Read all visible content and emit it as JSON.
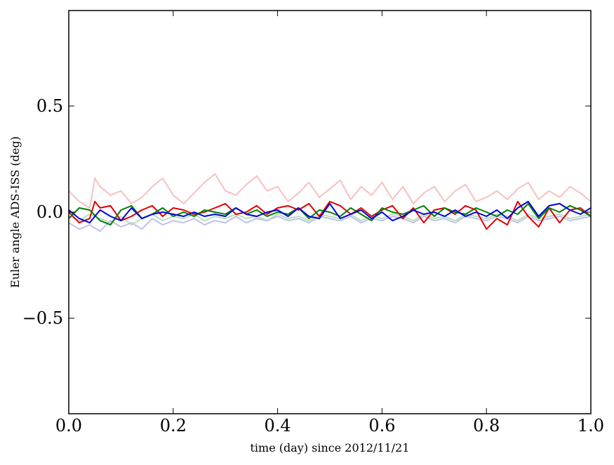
{
  "chart_data": {
    "type": "line",
    "xlabel": "time (day) since 2012/11/21",
    "ylabel": "Euler angle ADS-ISS (deg)",
    "xlim": [
      0.0,
      1.0
    ],
    "ylim": [
      -0.95,
      0.95
    ],
    "grid": false,
    "x_ticks": [
      {
        "value": 0.0,
        "label": "0.0"
      },
      {
        "value": 0.2,
        "label": "0.2"
      },
      {
        "value": 0.4,
        "label": "0.4"
      },
      {
        "value": 0.6,
        "label": "0.6"
      },
      {
        "value": 0.8,
        "label": "0.8"
      },
      {
        "value": 1.0,
        "label": "1.0"
      }
    ],
    "y_ticks": [
      {
        "value": -0.5,
        "label": "−0.5"
      },
      {
        "value": 0.0,
        "label": "0.0"
      },
      {
        "value": 0.5,
        "label": "0.5"
      }
    ],
    "series": [
      {
        "color": "#f8c0c0",
        "x": [
          0.0,
          0.02,
          0.04,
          0.05,
          0.06,
          0.08,
          0.1,
          0.12,
          0.14,
          0.16,
          0.18,
          0.2,
          0.22,
          0.24,
          0.26,
          0.28,
          0.3,
          0.32,
          0.34,
          0.36,
          0.38,
          0.4,
          0.42,
          0.44,
          0.46,
          0.48,
          0.5,
          0.52,
          0.54,
          0.56,
          0.58,
          0.6,
          0.62,
          0.64,
          0.66,
          0.68,
          0.7,
          0.72,
          0.74,
          0.76,
          0.78,
          0.8,
          0.82,
          0.84,
          0.86,
          0.88,
          0.9,
          0.92,
          0.94,
          0.96,
          0.98,
          1.0
        ],
        "y": [
          0.1,
          0.05,
          0.02,
          0.16,
          0.12,
          0.08,
          0.1,
          0.04,
          0.07,
          0.12,
          0.16,
          0.08,
          0.04,
          0.09,
          0.14,
          0.18,
          0.1,
          0.08,
          0.13,
          0.17,
          0.1,
          0.12,
          0.05,
          0.09,
          0.14,
          0.07,
          0.11,
          0.15,
          0.06,
          0.12,
          0.08,
          0.14,
          0.06,
          0.12,
          0.04,
          0.09,
          0.12,
          0.05,
          0.1,
          0.13,
          0.05,
          0.07,
          0.1,
          0.06,
          0.11,
          0.14,
          0.06,
          0.1,
          0.07,
          0.12,
          0.09,
          0.05
        ]
      },
      {
        "color": "#b8e0b8",
        "x": [
          0.0,
          0.02,
          0.04,
          0.06,
          0.08,
          0.1,
          0.12,
          0.14,
          0.16,
          0.18,
          0.2,
          0.22,
          0.24,
          0.26,
          0.28,
          0.3,
          0.32,
          0.34,
          0.36,
          0.38,
          0.4,
          0.42,
          0.44,
          0.46,
          0.48,
          0.5,
          0.52,
          0.54,
          0.56,
          0.58,
          0.6,
          0.62,
          0.64,
          0.66,
          0.68,
          0.7,
          0.72,
          0.74,
          0.76,
          0.78,
          0.8,
          0.82,
          0.84,
          0.86,
          0.88,
          0.9,
          0.92,
          0.94,
          0.96,
          0.98,
          1.0
        ],
        "y": [
          -0.02,
          -0.04,
          -0.01,
          -0.03,
          -0.05,
          -0.02,
          -0.06,
          -0.03,
          -0.01,
          -0.04,
          -0.02,
          -0.03,
          -0.01,
          -0.04,
          -0.02,
          -0.03,
          -0.01,
          -0.03,
          -0.02,
          -0.04,
          -0.01,
          -0.03,
          -0.02,
          -0.04,
          -0.01,
          -0.02,
          -0.03,
          -0.01,
          -0.04,
          -0.02,
          -0.03,
          -0.01,
          -0.02,
          -0.04,
          -0.01,
          -0.03,
          -0.02,
          -0.04,
          -0.01,
          -0.02,
          -0.03,
          -0.01,
          -0.02,
          -0.04,
          -0.01,
          -0.03,
          -0.02,
          -0.01,
          -0.03,
          -0.02,
          -0.01
        ]
      },
      {
        "color": "#c0c0f0",
        "x": [
          0.0,
          0.02,
          0.04,
          0.06,
          0.08,
          0.1,
          0.12,
          0.14,
          0.16,
          0.18,
          0.2,
          0.22,
          0.24,
          0.26,
          0.28,
          0.3,
          0.32,
          0.34,
          0.36,
          0.38,
          0.4,
          0.42,
          0.44,
          0.46,
          0.48,
          0.5,
          0.52,
          0.54,
          0.56,
          0.58,
          0.6,
          0.62,
          0.64,
          0.66,
          0.68,
          0.7,
          0.72,
          0.74,
          0.76,
          0.78,
          0.8,
          0.82,
          0.84,
          0.86,
          0.88,
          0.9,
          0.92,
          0.94,
          0.96,
          0.98,
          1.0
        ],
        "y": [
          -0.05,
          -0.08,
          -0.06,
          -0.09,
          -0.04,
          -0.07,
          -0.05,
          -0.08,
          -0.03,
          -0.06,
          -0.04,
          -0.05,
          -0.03,
          -0.06,
          -0.04,
          -0.05,
          -0.02,
          -0.05,
          -0.03,
          -0.04,
          -0.02,
          -0.04,
          -0.03,
          -0.05,
          -0.02,
          -0.03,
          -0.04,
          -0.02,
          -0.05,
          -0.03,
          -0.04,
          -0.02,
          -0.03,
          -0.05,
          -0.02,
          -0.04,
          -0.03,
          -0.05,
          -0.02,
          -0.03,
          -0.04,
          -0.02,
          -0.03,
          -0.05,
          -0.02,
          -0.04,
          -0.03,
          -0.02,
          -0.04,
          -0.03,
          -0.02
        ]
      },
      {
        "color": "#e00000",
        "x": [
          0.0,
          0.02,
          0.04,
          0.05,
          0.06,
          0.08,
          0.1,
          0.12,
          0.14,
          0.16,
          0.18,
          0.2,
          0.22,
          0.24,
          0.26,
          0.28,
          0.3,
          0.32,
          0.34,
          0.36,
          0.38,
          0.4,
          0.42,
          0.44,
          0.46,
          0.48,
          0.5,
          0.52,
          0.54,
          0.56,
          0.58,
          0.6,
          0.62,
          0.64,
          0.66,
          0.68,
          0.7,
          0.72,
          0.74,
          0.76,
          0.78,
          0.8,
          0.82,
          0.84,
          0.86,
          0.88,
          0.9,
          0.92,
          0.94,
          0.96,
          0.98,
          1.0
        ],
        "y": [
          0.0,
          -0.05,
          -0.03,
          0.05,
          0.02,
          0.03,
          -0.04,
          -0.02,
          0.01,
          0.03,
          -0.02,
          0.02,
          0.01,
          -0.01,
          0.0,
          0.02,
          0.04,
          -0.01,
          0.0,
          0.03,
          -0.01,
          0.02,
          0.03,
          0.01,
          0.04,
          -0.02,
          0.05,
          0.03,
          -0.01,
          0.02,
          -0.02,
          0.01,
          0.03,
          -0.03,
          0.02,
          -0.05,
          0.01,
          0.02,
          -0.01,
          0.03,
          0.01,
          -0.08,
          -0.03,
          -0.06,
          0.05,
          -0.02,
          -0.07,
          0.02,
          -0.05,
          0.01,
          0.02,
          -0.02
        ]
      },
      {
        "color": "#008000",
        "x": [
          0.0,
          0.02,
          0.04,
          0.06,
          0.08,
          0.1,
          0.12,
          0.14,
          0.16,
          0.18,
          0.2,
          0.22,
          0.24,
          0.26,
          0.28,
          0.3,
          0.32,
          0.34,
          0.36,
          0.38,
          0.4,
          0.42,
          0.44,
          0.46,
          0.48,
          0.5,
          0.52,
          0.54,
          0.56,
          0.58,
          0.6,
          0.62,
          0.64,
          0.66,
          0.68,
          0.7,
          0.72,
          0.74,
          0.76,
          0.78,
          0.8,
          0.82,
          0.84,
          0.86,
          0.88,
          0.9,
          0.92,
          0.94,
          0.96,
          0.98,
          1.0
        ],
        "y": [
          -0.03,
          0.02,
          0.01,
          -0.04,
          -0.06,
          0.01,
          0.03,
          -0.03,
          -0.01,
          0.02,
          -0.02,
          0.0,
          -0.02,
          0.01,
          0.0,
          -0.01,
          0.02,
          -0.01,
          0.01,
          -0.02,
          0.0,
          -0.01,
          0.02,
          -0.03,
          0.01,
          0.0,
          -0.02,
          0.02,
          -0.01,
          -0.04,
          0.02,
          0.0,
          -0.01,
          0.01,
          0.03,
          -0.02,
          0.02,
          0.0,
          -0.01,
          0.02,
          0.0,
          -0.02,
          0.01,
          -0.01,
          0.04,
          -0.03,
          0.02,
          0.0,
          0.03,
          0.01,
          -0.02
        ]
      },
      {
        "color": "#0000e0",
        "x": [
          0.0,
          0.02,
          0.04,
          0.06,
          0.08,
          0.1,
          0.12,
          0.14,
          0.16,
          0.18,
          0.2,
          0.22,
          0.24,
          0.26,
          0.28,
          0.3,
          0.32,
          0.34,
          0.36,
          0.38,
          0.4,
          0.42,
          0.44,
          0.46,
          0.48,
          0.5,
          0.52,
          0.54,
          0.56,
          0.58,
          0.6,
          0.62,
          0.64,
          0.66,
          0.68,
          0.7,
          0.72,
          0.74,
          0.76,
          0.78,
          0.8,
          0.82,
          0.84,
          0.86,
          0.88,
          0.9,
          0.92,
          0.94,
          0.96,
          0.98,
          1.0
        ],
        "y": [
          0.01,
          -0.03,
          -0.05,
          0.01,
          -0.02,
          -0.04,
          0.02,
          -0.03,
          -0.01,
          0.0,
          -0.01,
          -0.02,
          0.0,
          -0.02,
          -0.01,
          -0.02,
          0.02,
          -0.01,
          -0.02,
          0.0,
          0.01,
          -0.02,
          0.02,
          -0.02,
          -0.03,
          0.04,
          -0.03,
          -0.01,
          0.01,
          -0.03,
          0.0,
          -0.04,
          -0.02,
          0.01,
          -0.01,
          0.0,
          -0.02,
          0.01,
          -0.02,
          0.0,
          -0.02,
          0.01,
          -0.03,
          0.02,
          0.05,
          -0.02,
          0.03,
          0.04,
          0.01,
          -0.01,
          0.02
        ]
      }
    ]
  }
}
